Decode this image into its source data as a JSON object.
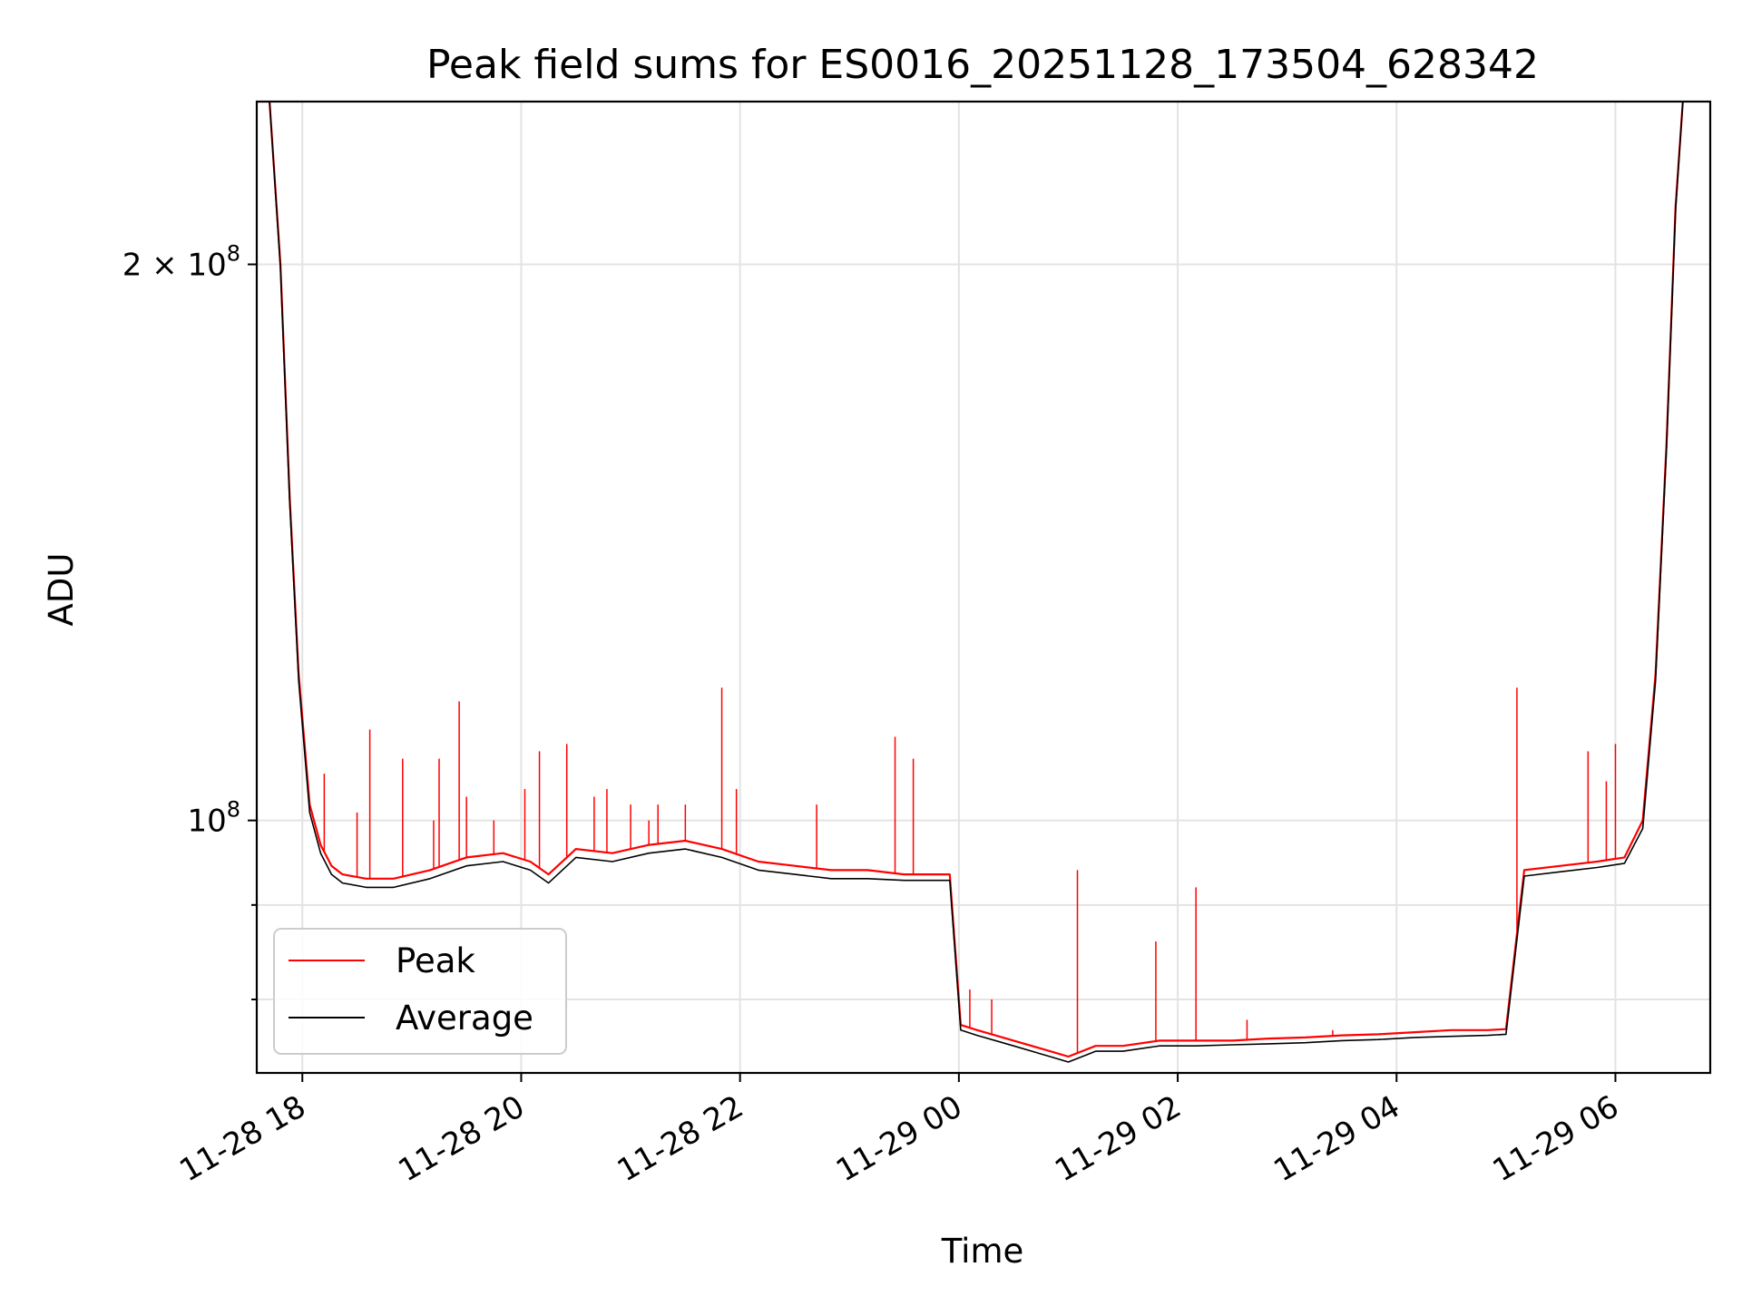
{
  "chart_data": {
    "type": "line",
    "title": "Peak field sums for ES0016_20251128_173504_628342",
    "xlabel": "Time",
    "ylabel": "ADU",
    "yscale": "log",
    "grid": true,
    "legend_position": "lower-left",
    "x_ticks": [
      "11-28 18",
      "11-28 20",
      "11-28 22",
      "11-29 00",
      "11-29 02",
      "11-29 04",
      "11-29 06"
    ],
    "y_ticks": [
      {
        "value": 100000000,
        "label_base": "10",
        "label_exp": "8"
      },
      {
        "value": 200000000,
        "label_base": "2 × 10",
        "label_exp": "8"
      }
    ],
    "y_minor_ticks": [
      80000000,
      90000000
    ],
    "xlim": [
      "2025-11-28T17:35",
      "2025-11-29T06:52"
    ],
    "ylim": [
      73000000,
      245000000
    ],
    "series": [
      {
        "name": "Peak",
        "color": "#ff0000",
        "x": [
          "2025-11-28T17:35",
          "2025-11-28T17:42",
          "2025-11-28T17:48",
          "2025-11-28T17:53",
          "2025-11-28T17:58",
          "2025-11-28T18:04",
          "2025-11-28T18:10",
          "2025-11-28T18:16",
          "2025-11-28T18:22",
          "2025-11-28T18:35",
          "2025-11-28T18:50",
          "2025-11-28T19:10",
          "2025-11-28T19:30",
          "2025-11-28T19:50",
          "2025-11-28T20:05",
          "2025-11-28T20:15",
          "2025-11-28T20:30",
          "2025-11-28T20:50",
          "2025-11-28T21:10",
          "2025-11-28T21:30",
          "2025-11-28T21:50",
          "2025-11-28T22:10",
          "2025-11-28T22:30",
          "2025-11-28T22:50",
          "2025-11-28T23:10",
          "2025-11-28T23:30",
          "2025-11-28T23:55",
          "2025-11-29T00:01",
          "2025-11-29T00:10",
          "2025-11-29T00:30",
          "2025-11-29T00:50",
          "2025-11-29T01:00",
          "2025-11-29T01:15",
          "2025-11-29T01:30",
          "2025-11-29T01:50",
          "2025-11-29T02:10",
          "2025-11-29T02:30",
          "2025-11-29T02:50",
          "2025-11-29T03:10",
          "2025-11-29T03:30",
          "2025-11-29T03:50",
          "2025-11-29T04:10",
          "2025-11-29T04:30",
          "2025-11-29T04:50",
          "2025-11-29T05:00",
          "2025-11-29T05:10",
          "2025-11-29T05:30",
          "2025-11-29T05:50",
          "2025-11-29T06:05",
          "2025-11-29T06:15",
          "2025-11-29T06:22",
          "2025-11-29T06:28",
          "2025-11-29T06:33",
          "2025-11-29T06:37"
        ],
        "y": [
          245000000,
          245000000,
          200000000,
          150000000,
          120000000,
          102000000,
          97000000,
          94500000,
          93500000,
          93000000,
          93000000,
          94000000,
          95500000,
          96000000,
          95000000,
          93500000,
          96500000,
          96000000,
          97000000,
          97500000,
          96500000,
          95000000,
          94500000,
          94000000,
          94000000,
          93500000,
          93500000,
          77500000,
          77000000,
          76000000,
          75000000,
          74500000,
          75500000,
          75500000,
          76000000,
          76000000,
          76000000,
          76200000,
          76300000,
          76500000,
          76600000,
          76800000,
          77000000,
          77000000,
          77100000,
          94000000,
          94500000,
          95000000,
          95500000,
          100000000,
          120000000,
          160000000,
          215000000,
          245000000
        ]
      },
      {
        "name": "Average",
        "color": "#000000",
        "x": [
          "2025-11-28T17:35",
          "2025-11-28T17:42",
          "2025-11-28T17:48",
          "2025-11-28T17:53",
          "2025-11-28T17:58",
          "2025-11-28T18:04",
          "2025-11-28T18:10",
          "2025-11-28T18:16",
          "2025-11-28T18:22",
          "2025-11-28T18:35",
          "2025-11-28T18:50",
          "2025-11-28T19:10",
          "2025-11-28T19:30",
          "2025-11-28T19:50",
          "2025-11-28T20:05",
          "2025-11-28T20:15",
          "2025-11-28T20:30",
          "2025-11-28T20:50",
          "2025-11-28T21:10",
          "2025-11-28T21:30",
          "2025-11-28T21:50",
          "2025-11-28T22:10",
          "2025-11-28T22:30",
          "2025-11-28T22:50",
          "2025-11-28T23:10",
          "2025-11-28T23:30",
          "2025-11-28T23:55",
          "2025-11-29T00:01",
          "2025-11-29T00:10",
          "2025-11-29T00:30",
          "2025-11-29T00:50",
          "2025-11-29T01:00",
          "2025-11-29T01:15",
          "2025-11-29T01:30",
          "2025-11-29T01:50",
          "2025-11-29T02:10",
          "2025-11-29T02:30",
          "2025-11-29T02:50",
          "2025-11-29T03:10",
          "2025-11-29T03:30",
          "2025-11-29T03:50",
          "2025-11-29T04:10",
          "2025-11-29T04:30",
          "2025-11-29T04:50",
          "2025-11-29T05:00",
          "2025-11-29T05:10",
          "2025-11-29T05:30",
          "2025-11-29T05:50",
          "2025-11-29T06:05",
          "2025-11-29T06:15",
          "2025-11-29T06:22",
          "2025-11-29T06:28",
          "2025-11-29T06:33",
          "2025-11-29T06:37"
        ],
        "y": [
          245000000,
          245000000,
          199000000,
          149000000,
          119000000,
          101000000,
          96000000,
          93500000,
          92500000,
          92000000,
          92000000,
          93000000,
          94500000,
          95000000,
          94000000,
          92500000,
          95500000,
          95000000,
          96000000,
          96500000,
          95500000,
          94000000,
          93500000,
          93000000,
          93000000,
          92800000,
          92800000,
          77000000,
          76500000,
          75500000,
          74500000,
          74000000,
          75000000,
          75000000,
          75500000,
          75500000,
          75600000,
          75700000,
          75800000,
          76000000,
          76100000,
          76300000,
          76400000,
          76500000,
          76600000,
          93300000,
          93800000,
          94300000,
          94800000,
          99000000,
          119000000,
          159000000,
          214000000,
          245000000
        ]
      }
    ],
    "peak_spikes": [
      {
        "x": "2025-11-28T18:12",
        "y": 106000000
      },
      {
        "x": "2025-11-28T18:30",
        "y": 101000000
      },
      {
        "x": "2025-11-28T18:37",
        "y": 112000000
      },
      {
        "x": "2025-11-28T18:55",
        "y": 108000000
      },
      {
        "x": "2025-11-28T19:12",
        "y": 100000000
      },
      {
        "x": "2025-11-28T19:15",
        "y": 108000000
      },
      {
        "x": "2025-11-28T19:26",
        "y": 116000000
      },
      {
        "x": "2025-11-28T19:30",
        "y": 103000000
      },
      {
        "x": "2025-11-28T19:45",
        "y": 100000000
      },
      {
        "x": "2025-11-28T20:02",
        "y": 104000000
      },
      {
        "x": "2025-11-28T20:10",
        "y": 109000000
      },
      {
        "x": "2025-11-28T20:25",
        "y": 110000000
      },
      {
        "x": "2025-11-28T20:40",
        "y": 103000000
      },
      {
        "x": "2025-11-28T20:47",
        "y": 104000000
      },
      {
        "x": "2025-11-28T21:00",
        "y": 102000000
      },
      {
        "x": "2025-11-28T21:10",
        "y": 100000000
      },
      {
        "x": "2025-11-28T21:15",
        "y": 102000000
      },
      {
        "x": "2025-11-28T21:30",
        "y": 102000000
      },
      {
        "x": "2025-11-28T21:50",
        "y": 118000000
      },
      {
        "x": "2025-11-28T21:58",
        "y": 104000000
      },
      {
        "x": "2025-11-28T22:42",
        "y": 102000000
      },
      {
        "x": "2025-11-28T23:25",
        "y": 111000000
      },
      {
        "x": "2025-11-28T23:35",
        "y": 108000000
      },
      {
        "x": "2025-11-29T00:06",
        "y": 81000000
      },
      {
        "x": "2025-11-29T00:18",
        "y": 80000000
      },
      {
        "x": "2025-11-29T01:05",
        "y": 94000000
      },
      {
        "x": "2025-11-29T01:48",
        "y": 86000000
      },
      {
        "x": "2025-11-29T02:10",
        "y": 92000000
      },
      {
        "x": "2025-11-29T02:38",
        "y": 78000000
      },
      {
        "x": "2025-11-29T03:25",
        "y": 77000000
      },
      {
        "x": "2025-11-29T05:06",
        "y": 118000000
      },
      {
        "x": "2025-11-29T05:45",
        "y": 109000000
      },
      {
        "x": "2025-11-29T05:55",
        "y": 105000000
      },
      {
        "x": "2025-11-29T06:00",
        "y": 110000000
      }
    ]
  }
}
